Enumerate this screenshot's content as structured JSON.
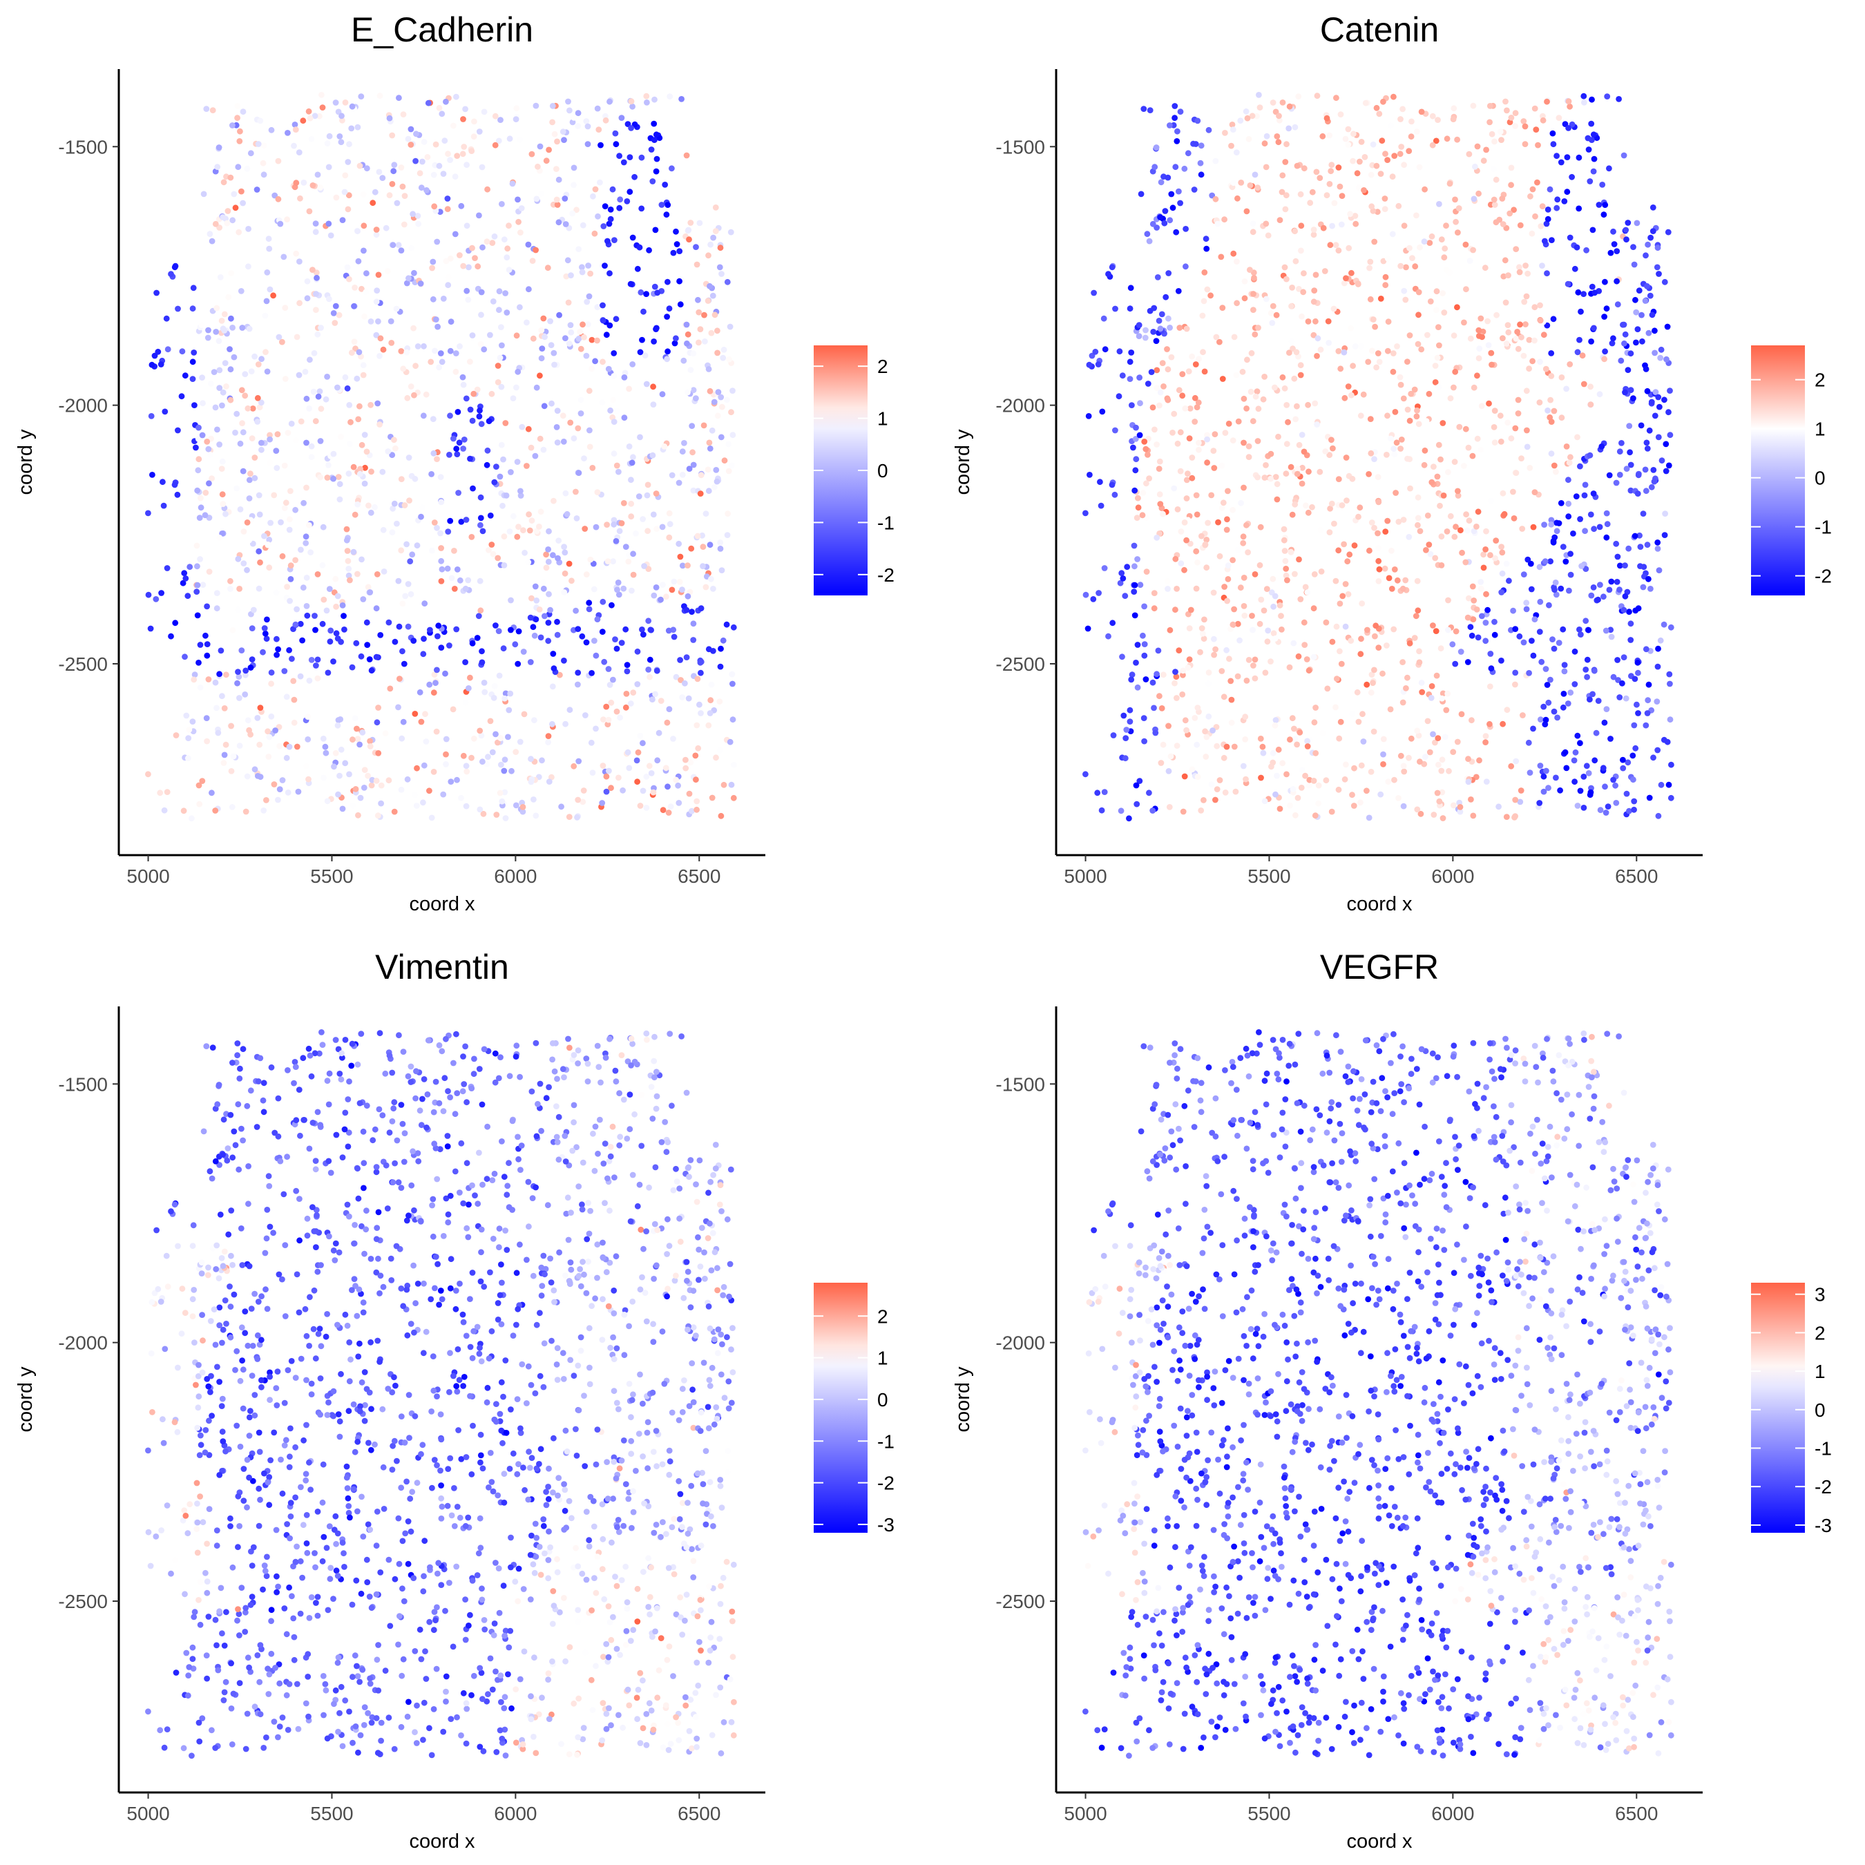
{
  "colors": {
    "low": "#0000ff",
    "mid": "#ffffff",
    "high": "#ff6347"
  },
  "chart_data": [
    {
      "type": "scatter",
      "title": "E_Cadherin",
      "xlabel": "coord x",
      "ylabel": "coord y",
      "xlim": [
        4920,
        6680
      ],
      "ylim": [
        -2870,
        -1350
      ],
      "xticks": [
        5000,
        5500,
        6000,
        6500
      ],
      "yticks": [
        -1500,
        -2000,
        -2500
      ],
      "color_scale": {
        "min": -2.4,
        "max": 2.4,
        "ticks": [
          2,
          1,
          0,
          -1,
          -2
        ]
      },
      "pattern": "ecad"
    },
    {
      "type": "scatter",
      "title": "Catenin",
      "xlabel": "coord x",
      "ylabel": "coord y",
      "xlim": [
        4920,
        6680
      ],
      "ylim": [
        -2870,
        -1350
      ],
      "xticks": [
        5000,
        5500,
        6000,
        6500
      ],
      "yticks": [
        -1500,
        -2000,
        -2500
      ],
      "color_scale": {
        "min": -2.4,
        "max": 2.7,
        "ticks": [
          2,
          1,
          0,
          -1,
          -2
        ]
      },
      "pattern": "catenin"
    },
    {
      "type": "scatter",
      "title": "Vimentin",
      "xlabel": "coord x",
      "ylabel": "coord y",
      "xlim": [
        4920,
        6680
      ],
      "ylim": [
        -2870,
        -1350
      ],
      "xticks": [
        5000,
        5500,
        6000,
        6500
      ],
      "yticks": [
        -1500,
        -2000,
        -2500
      ],
      "color_scale": {
        "min": -3.2,
        "max": 2.8,
        "ticks": [
          2,
          1,
          0,
          -1,
          -2,
          -3
        ]
      },
      "pattern": "vimentin"
    },
    {
      "type": "scatter",
      "title": "VEGFR",
      "xlabel": "coord x",
      "ylabel": "coord y",
      "xlim": [
        4920,
        6680
      ],
      "ylim": [
        -2870,
        -1350
      ],
      "xticks": [
        5000,
        5500,
        6000,
        6500
      ],
      "yticks": [
        -1500,
        -2000,
        -2500
      ],
      "color_scale": {
        "min": -3.2,
        "max": 3.3,
        "ticks": [
          3,
          2,
          1,
          0,
          -1,
          -2,
          -3
        ]
      },
      "pattern": "vegfr"
    }
  ]
}
